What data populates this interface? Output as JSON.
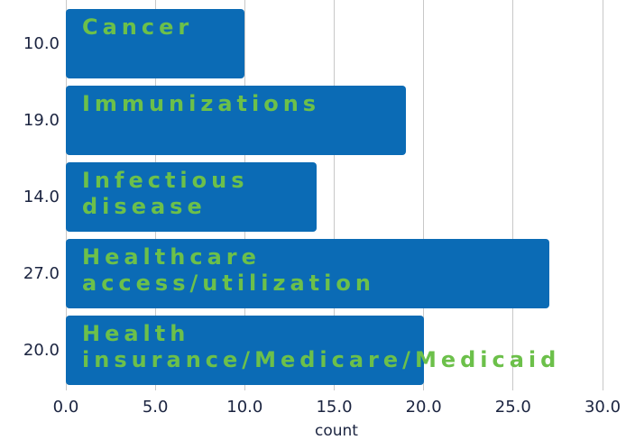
{
  "chart_data": {
    "type": "barh",
    "categories": [
      "Cancer",
      "Immunizations",
      "Infectious disease",
      "Healthcare access/utilization",
      "Health insurance/Medicare/Medicaid"
    ],
    "values": [
      10,
      19,
      14,
      27,
      20
    ],
    "value_labels": [
      "10.0",
      "19.0",
      "14.0",
      "27.0",
      "20.0"
    ],
    "color": "#0b6bb5",
    "label_color": "#6cc04a",
    "x_label": "count",
    "xlim": [
      0,
      30
    ],
    "xticks": [
      {
        "value": 0,
        "label": "0.0"
      },
      {
        "value": 5,
        "label": "5.0"
      },
      {
        "value": 10,
        "label": "10.0"
      },
      {
        "value": 15,
        "label": "15.0"
      },
      {
        "value": 20,
        "label": "20.0"
      },
      {
        "value": 25,
        "label": "25.0"
      },
      {
        "value": 30,
        "label": "30.0"
      }
    ],
    "grid": true
  }
}
